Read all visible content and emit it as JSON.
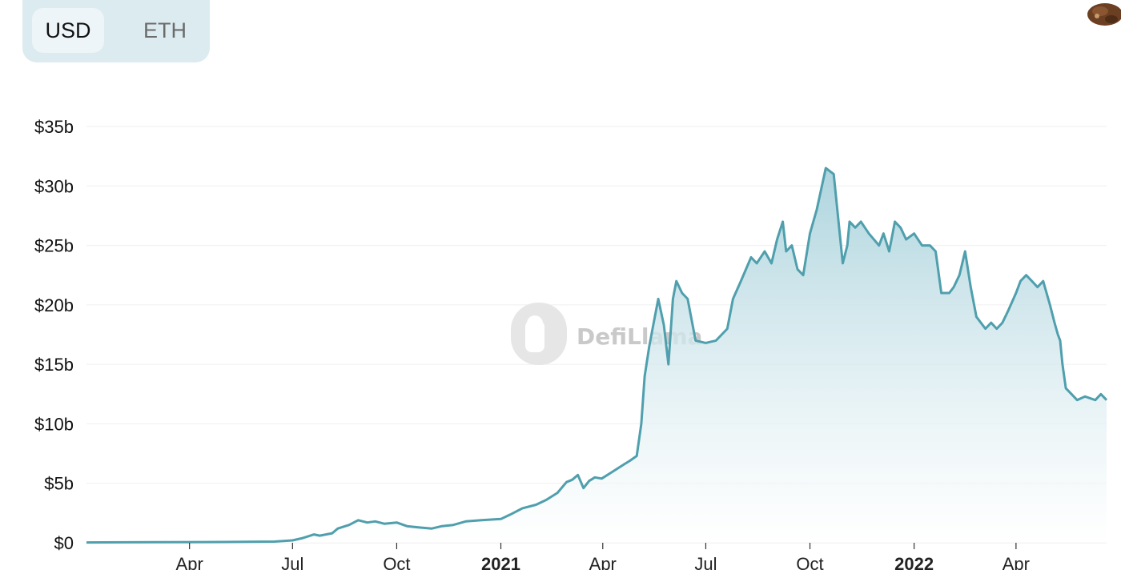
{
  "toggle": {
    "options": [
      "USD",
      "ETH"
    ],
    "selected": "USD"
  },
  "watermark": {
    "text": "DefiLlama"
  },
  "colors": {
    "line": "#4f9fad",
    "fill_top": "#a9d2dc",
    "fill_bottom": "#ffffff",
    "grid": "#efefef",
    "toggle_bg": "#dcebf0"
  },
  "chart_data": {
    "type": "area",
    "title": "",
    "xlabel": "",
    "ylabel": "",
    "ylim": [
      0,
      35
    ],
    "y_unit": "billion USD",
    "yticks": [
      0,
      5,
      10,
      15,
      20,
      25,
      30,
      35
    ],
    "ytick_labels": [
      "$0",
      "$5b",
      "$10b",
      "$15b",
      "$20b",
      "$25b",
      "$30b",
      "$35b"
    ],
    "x_range": [
      "2020-01-01",
      "2022-06-20"
    ],
    "xticks": [
      {
        "date": "2020-04-01",
        "label": "Apr",
        "bold": false
      },
      {
        "date": "2020-07-01",
        "label": "Jul",
        "bold": false
      },
      {
        "date": "2020-10-01",
        "label": "Oct",
        "bold": false
      },
      {
        "date": "2021-01-01",
        "label": "2021",
        "bold": true
      },
      {
        "date": "2021-04-01",
        "label": "Apr",
        "bold": false
      },
      {
        "date": "2021-07-01",
        "label": "Jul",
        "bold": false
      },
      {
        "date": "2021-10-01",
        "label": "Oct",
        "bold": false
      },
      {
        "date": "2022-01-01",
        "label": "2022",
        "bold": true
      },
      {
        "date": "2022-04-01",
        "label": "Apr",
        "bold": false
      }
    ],
    "grid": true,
    "legend": "none",
    "series": [
      {
        "x": [
          "2020-01-01",
          "2020-03-01",
          "2020-05-01",
          "2020-06-15",
          "2020-07-01",
          "2020-07-10",
          "2020-07-20",
          "2020-07-25",
          "2020-08-05",
          "2020-08-10",
          "2020-08-20",
          "2020-08-28",
          "2020-09-05",
          "2020-09-12",
          "2020-09-20",
          "2020-10-01",
          "2020-10-10",
          "2020-10-20",
          "2020-11-01",
          "2020-11-10",
          "2020-11-20",
          "2020-12-01",
          "2020-12-15",
          "2021-01-01",
          "2021-01-10",
          "2021-01-20",
          "2021-02-01",
          "2021-02-10",
          "2021-02-20",
          "2021-02-28",
          "2021-03-05",
          "2021-03-10",
          "2021-03-15",
          "2021-03-20",
          "2021-03-25",
          "2021-03-31",
          "2021-04-10",
          "2021-04-20",
          "2021-04-25",
          "2021-05-01",
          "2021-05-05",
          "2021-05-08",
          "2021-05-12",
          "2021-05-16",
          "2021-05-20",
          "2021-05-25",
          "2021-05-29",
          "2021-06-02",
          "2021-06-05",
          "2021-06-10",
          "2021-06-15",
          "2021-06-22",
          "2021-07-01",
          "2021-07-10",
          "2021-07-20",
          "2021-07-25",
          "2021-08-01",
          "2021-08-10",
          "2021-08-15",
          "2021-08-22",
          "2021-08-28",
          "2021-09-02",
          "2021-09-07",
          "2021-09-10",
          "2021-09-15",
          "2021-09-20",
          "2021-09-25",
          "2021-10-01",
          "2021-10-07",
          "2021-10-15",
          "2021-10-22",
          "2021-10-30",
          "2021-11-03",
          "2021-11-05",
          "2021-11-10",
          "2021-11-15",
          "2021-11-22",
          "2021-12-01",
          "2021-12-05",
          "2021-12-10",
          "2021-12-15",
          "2021-12-20",
          "2021-12-25",
          "2022-01-01",
          "2022-01-08",
          "2022-01-15",
          "2022-01-20",
          "2022-01-25",
          "2022-02-01",
          "2022-02-05",
          "2022-02-10",
          "2022-02-15",
          "2022-02-20",
          "2022-02-25",
          "2022-03-01",
          "2022-03-05",
          "2022-03-10",
          "2022-03-15",
          "2022-03-20",
          "2022-03-25",
          "2022-04-01",
          "2022-04-05",
          "2022-04-10",
          "2022-04-15",
          "2022-04-20",
          "2022-04-25",
          "2022-05-01",
          "2022-05-05",
          "2022-05-08",
          "2022-05-10",
          "2022-05-12",
          "2022-05-15",
          "2022-05-20",
          "2022-05-25",
          "2022-06-01",
          "2022-06-10",
          "2022-06-15",
          "2022-06-20"
        ],
        "y": [
          0.03,
          0.05,
          0.07,
          0.1,
          0.2,
          0.4,
          0.7,
          0.6,
          0.8,
          1.2,
          1.5,
          1.9,
          1.7,
          1.8,
          1.6,
          1.7,
          1.4,
          1.3,
          1.2,
          1.4,
          1.5,
          1.8,
          1.9,
          2.0,
          2.4,
          2.9,
          3.2,
          3.6,
          4.2,
          5.1,
          5.3,
          5.7,
          4.6,
          5.2,
          5.5,
          5.4,
          6.0,
          6.6,
          6.9,
          7.3,
          10.0,
          14.0,
          16.5,
          18.5,
          20.5,
          18.3,
          15.0,
          20.5,
          22.0,
          21.0,
          20.5,
          17.0,
          16.8,
          17.0,
          18.0,
          20.5,
          22.0,
          24.0,
          23.5,
          24.5,
          23.5,
          25.5,
          27.0,
          24.5,
          25.0,
          23.0,
          22.5,
          26.0,
          28.0,
          31.5,
          31.0,
          23.5,
          25.0,
          27.0,
          26.5,
          27.0,
          26.0,
          25.0,
          26.0,
          24.5,
          27.0,
          26.5,
          25.5,
          26.0,
          25.0,
          25.0,
          24.5,
          21.0,
          21.0,
          21.5,
          22.5,
          24.5,
          21.5,
          19.0,
          18.5,
          18.0,
          18.5,
          18.0,
          18.5,
          19.5,
          21.0,
          22.0,
          22.5,
          22.0,
          21.5,
          22.0,
          20.0,
          18.5,
          17.5,
          17.0,
          15.0,
          13.0,
          12.5,
          12.0,
          12.3,
          12.0,
          12.5,
          12.0
        ]
      }
    ]
  }
}
